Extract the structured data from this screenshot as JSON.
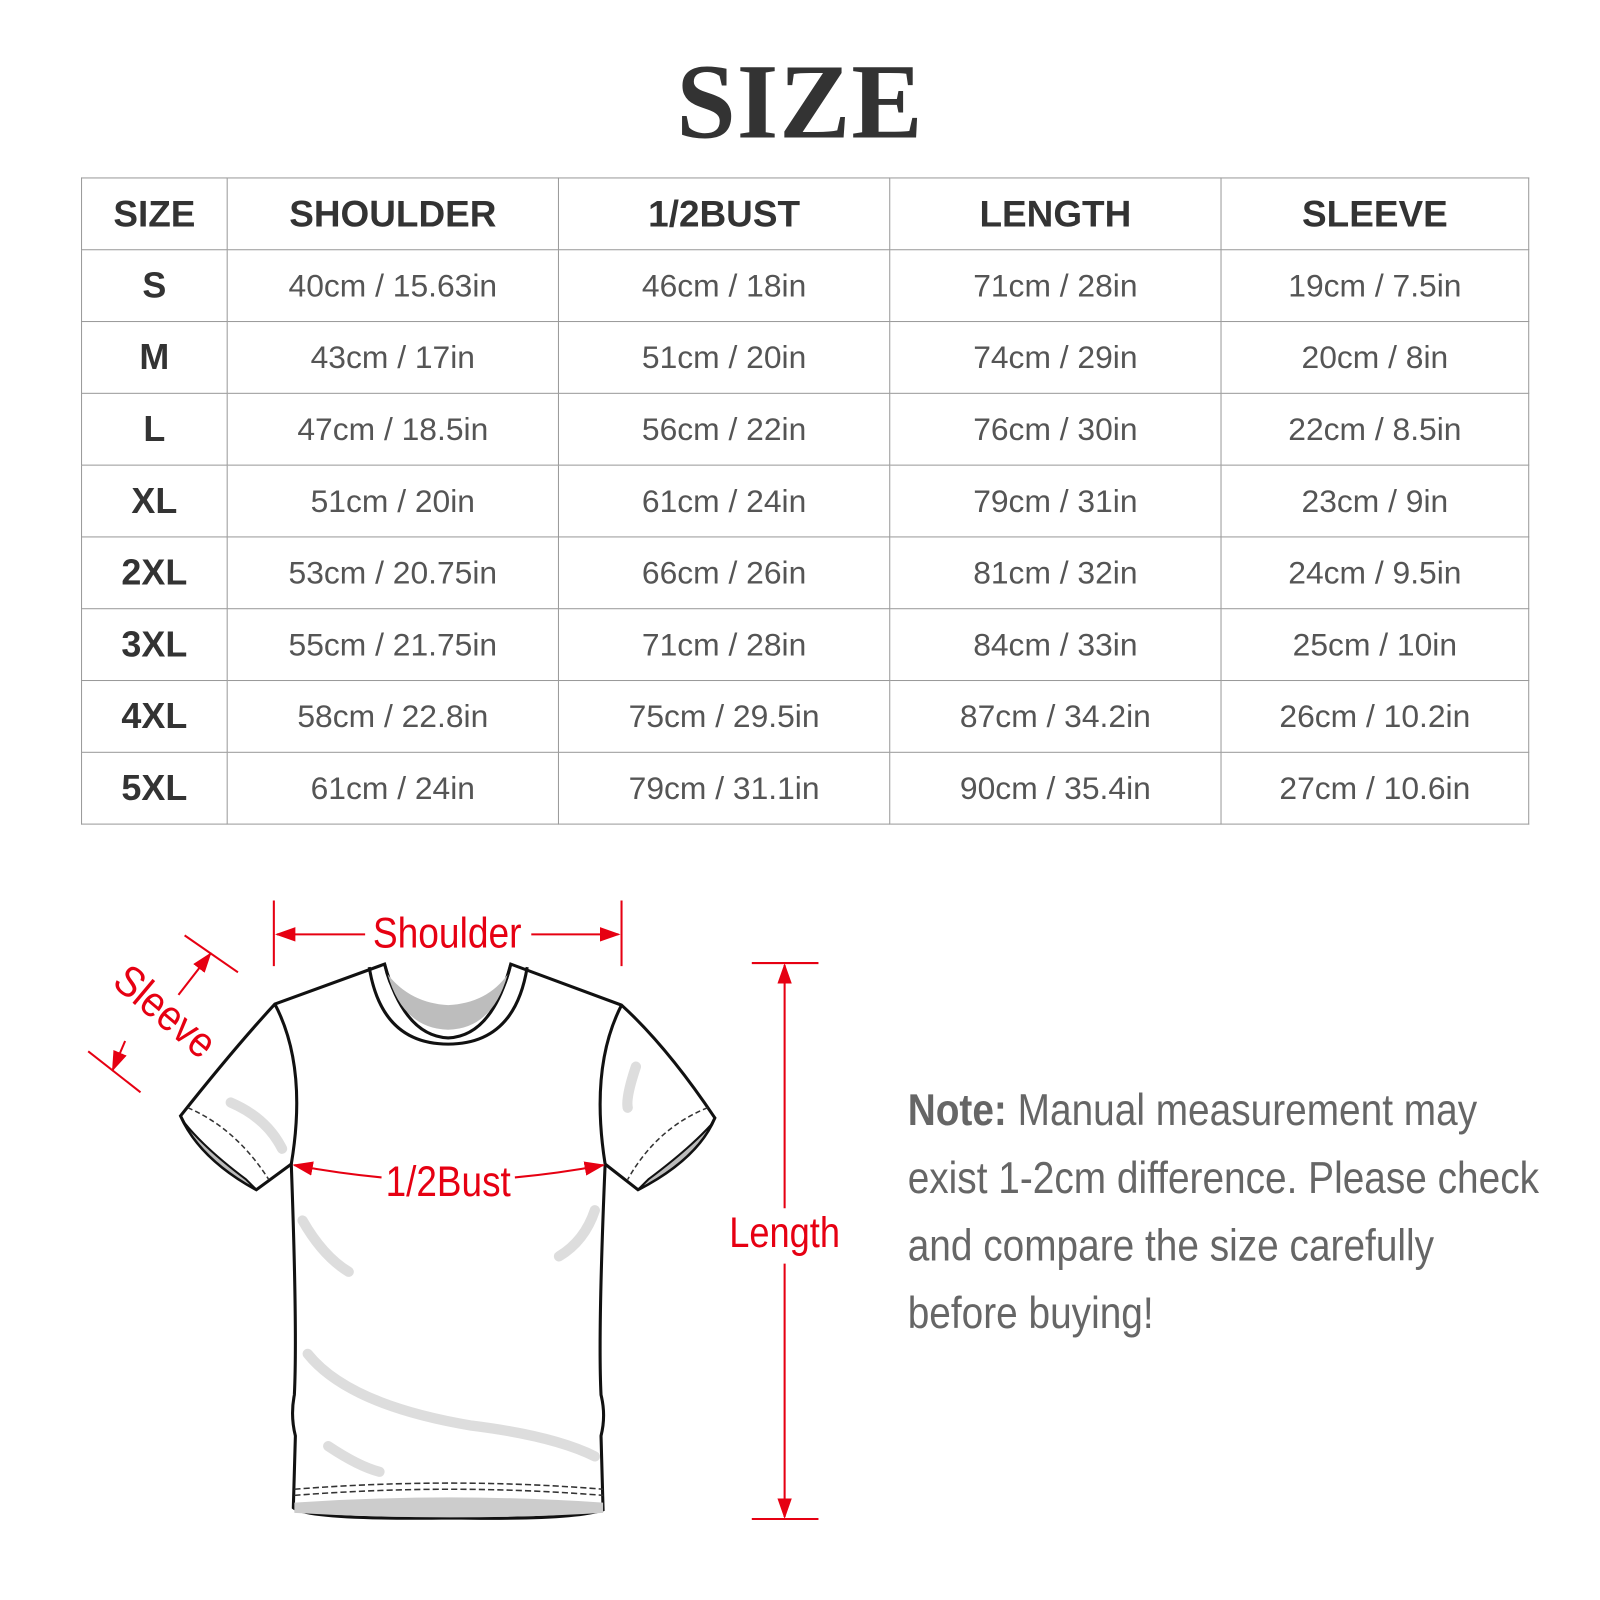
{
  "title": "SIZE",
  "table": {
    "headers": [
      "SIZE",
      "SHOULDER",
      "1/2BUST",
      "LENGTH",
      "SLEEVE"
    ],
    "rows": [
      [
        "S",
        "40cm / 15.63in",
        "46cm / 18in",
        "71cm / 28in",
        "19cm / 7.5in"
      ],
      [
        "M",
        "43cm / 17in",
        "51cm / 20in",
        "74cm / 29in",
        "20cm / 8in"
      ],
      [
        "L",
        "47cm / 18.5in",
        "56cm / 22in",
        "76cm / 30in",
        "22cm / 8.5in"
      ],
      [
        "XL",
        "51cm / 20in",
        "61cm / 24in",
        "79cm / 31in",
        "23cm / 9in"
      ],
      [
        "2XL",
        "53cm / 20.75in",
        "66cm / 26in",
        "81cm / 32in",
        "24cm / 9.5in"
      ],
      [
        "3XL",
        "55cm / 21.75in",
        "71cm / 28in",
        "84cm / 33in",
        "25cm / 10in"
      ],
      [
        "4XL",
        "58cm / 22.8in",
        "75cm / 29.5in",
        "87cm / 34.2in",
        "26cm / 10.2in"
      ],
      [
        "5XL",
        "61cm / 24in",
        "79cm / 31.1in",
        "90cm / 35.4in",
        "27cm / 10.6in"
      ]
    ]
  },
  "diagram": {
    "shoulder_label": "Shoulder",
    "sleeve_label": "Sleeve",
    "bust_label": "1/2Bust",
    "length_label": "Length",
    "accent_color": "#e60012"
  },
  "note": {
    "label": "Note:",
    "text": "Manual measurement may exist 1-2cm difference. Please check and compare the size carefully before buying!"
  }
}
